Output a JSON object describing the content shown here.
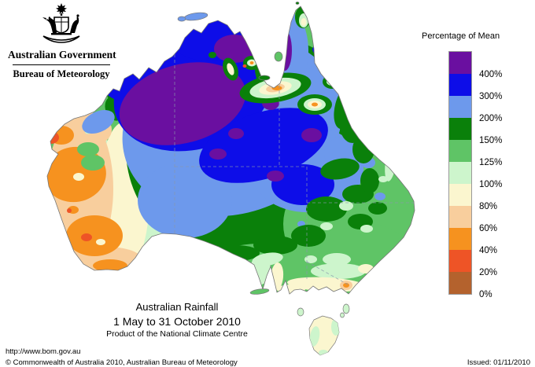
{
  "logo": {
    "government": "Australian Government",
    "bureau": "Bureau of Meteorology"
  },
  "legend": {
    "title": "Percentage of Mean",
    "bands": [
      {
        "color": "#6A0FA0",
        "label": "400%"
      },
      {
        "color": "#0D0DE8",
        "label": "300%"
      },
      {
        "color": "#6D99EC",
        "label": "200%"
      },
      {
        "color": "#0A800A",
        "label": "150%"
      },
      {
        "color": "#5FC466",
        "label": "125%"
      },
      {
        "color": "#CDF5CC",
        "label": "100%"
      },
      {
        "color": "#FBF6CF",
        "label": "80%"
      },
      {
        "color": "#F8CE9D",
        "label": "60%"
      },
      {
        "color": "#F6921F",
        "label": "40%"
      },
      {
        "color": "#EE5426",
        "label": "20%"
      },
      {
        "color": "#B4622D",
        "label": "0%"
      }
    ]
  },
  "caption": {
    "title": "Australian Rainfall",
    "period": "1 May to 31 October 2010",
    "product": "Product of the National Climate Centre"
  },
  "footer": {
    "url": "http://www.bom.gov.au",
    "copyright": "© Commonwealth of Australia 2010, Australian Bureau of Meteorology",
    "issued": "Issued: 01/11/2010"
  },
  "map": {
    "region": "Australia",
    "type": "rainfall percentage-of-mean contour map",
    "sea_color": "#ffffff",
    "coast_color": "#777777"
  }
}
